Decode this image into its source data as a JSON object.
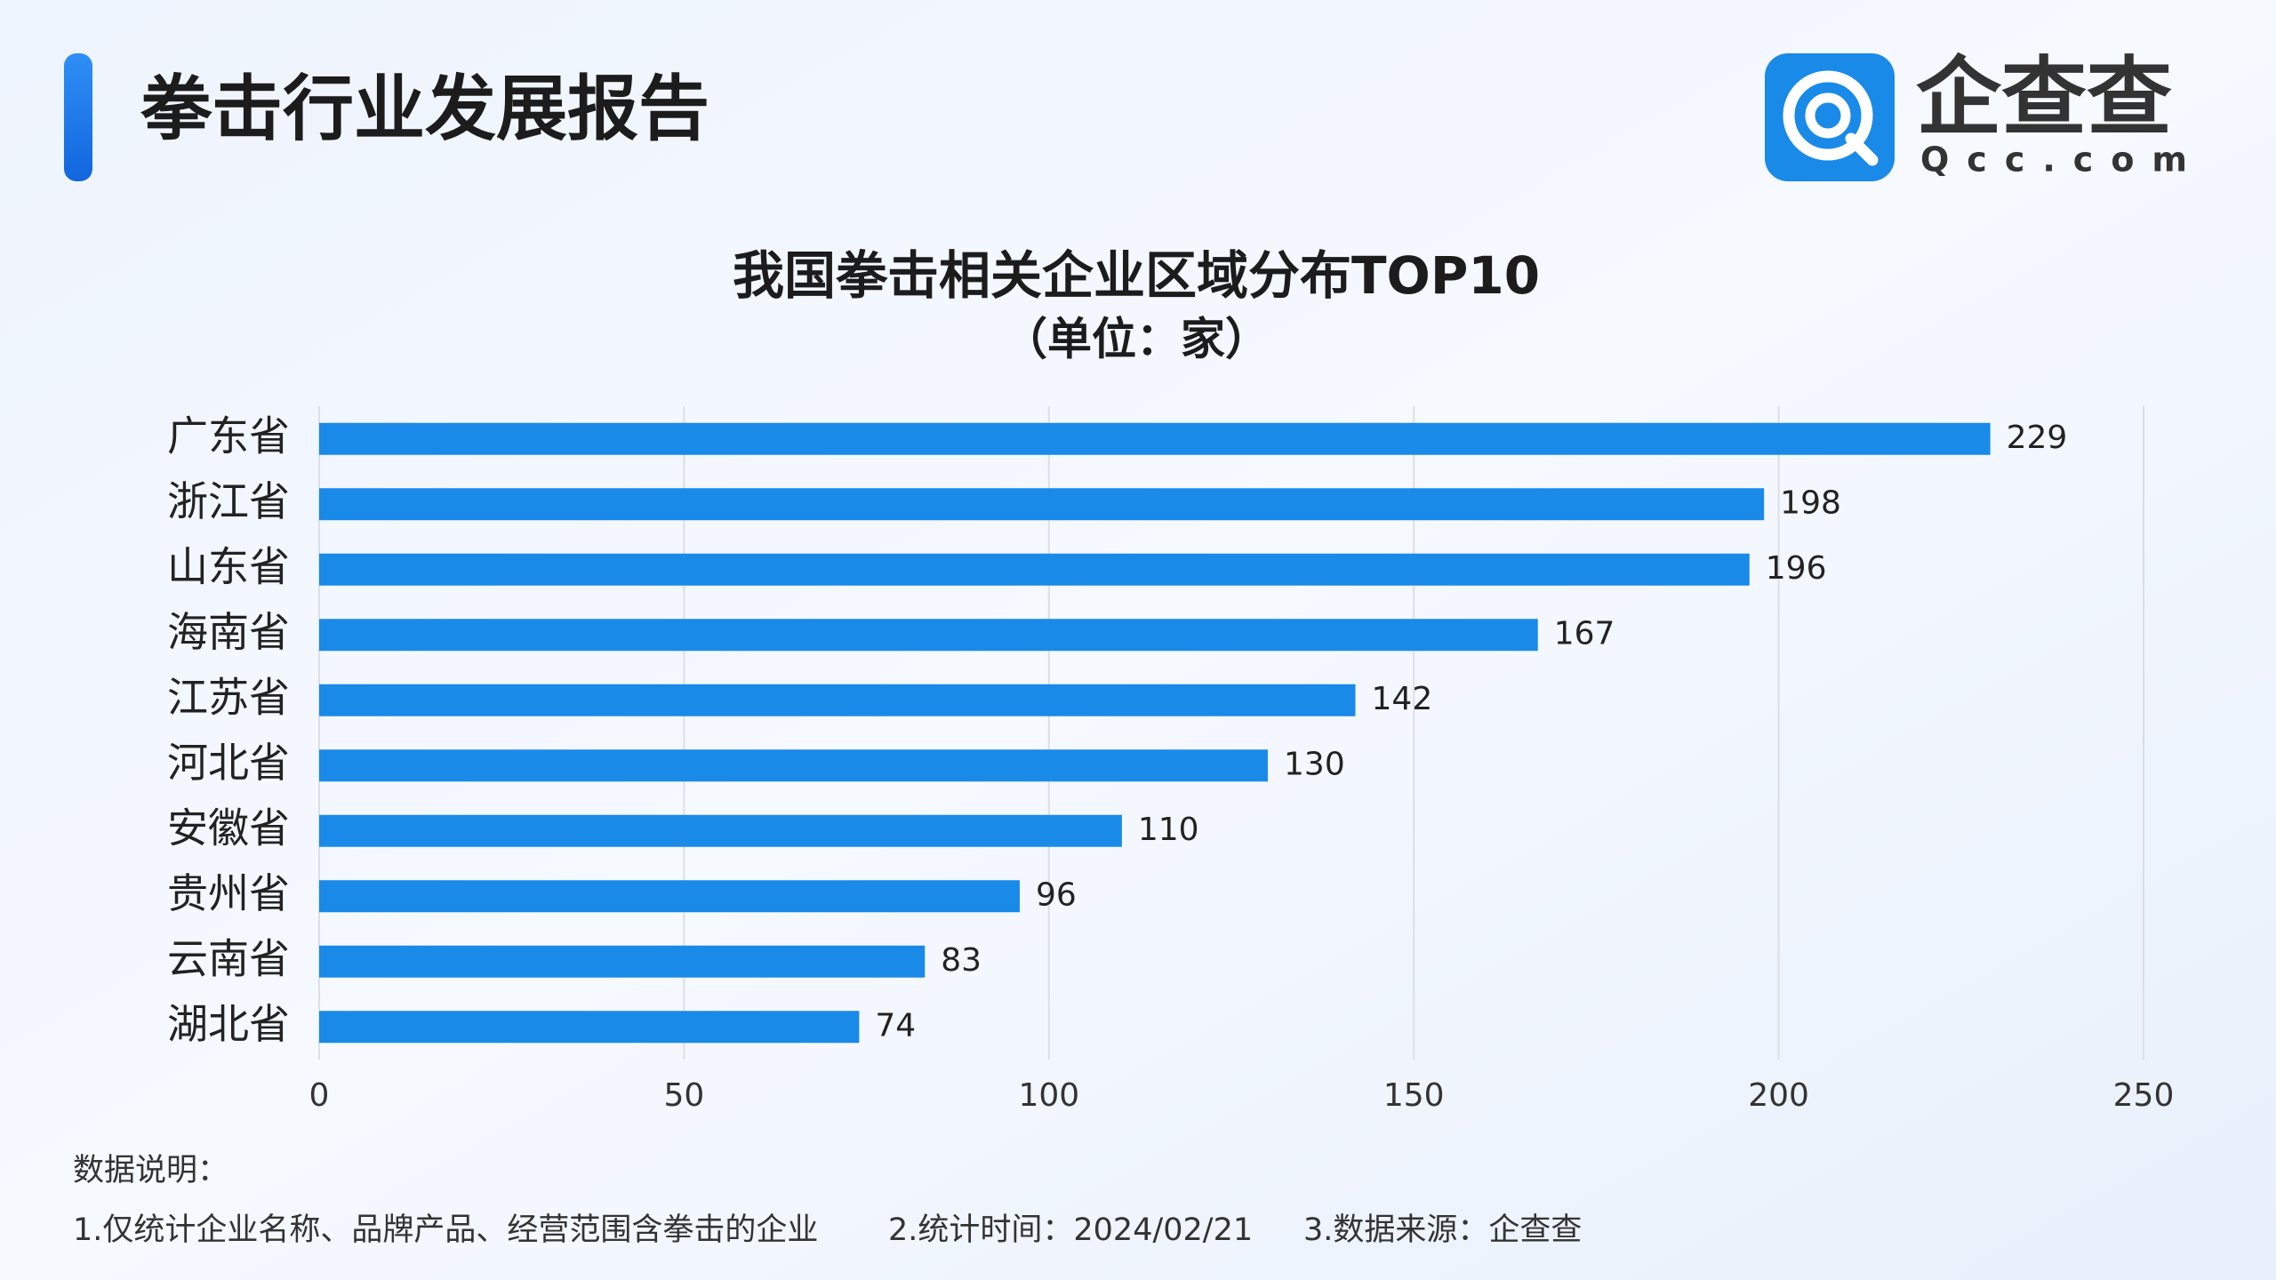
{
  "header": {
    "title": "拳击行业发展报告"
  },
  "logo": {
    "name": "企查查",
    "domain": "Qcc.com"
  },
  "chart_data": {
    "type": "bar",
    "horizontal": true,
    "title": "我国拳击相关企业区域分布TOP10",
    "subtitle": "（单位：家）",
    "categories": [
      "广东省",
      "浙江省",
      "山东省",
      "海南省",
      "江苏省",
      "河北省",
      "安徽省",
      "贵州省",
      "云南省",
      "湖北省"
    ],
    "values": [
      229,
      198,
      196,
      167,
      142,
      130,
      110,
      96,
      83,
      74
    ],
    "color": "#1a8ae8",
    "xlim": [
      0,
      250
    ],
    "xticks": [
      0,
      50,
      100,
      150,
      200,
      250
    ],
    "grid": true
  },
  "notes": {
    "heading": "数据说明：",
    "items": [
      "1.仅统计企业名称、品牌产品、经营范围含拳击的企业",
      "2.统计时间：2024/02/21",
      "3.数据来源：企查查"
    ]
  }
}
